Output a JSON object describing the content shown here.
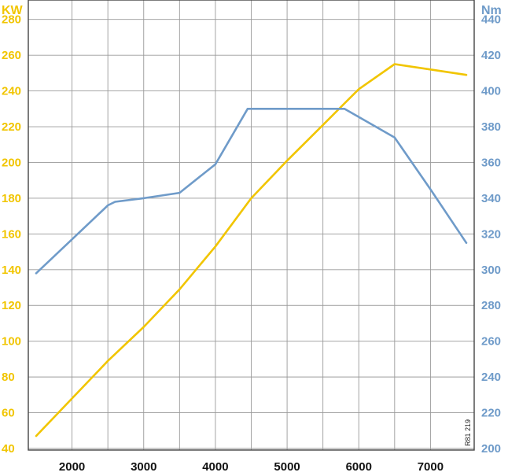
{
  "chart_data": {
    "type": "line",
    "x_ticks": [
      2000,
      3000,
      4000,
      5000,
      6000,
      7000
    ],
    "xlim": [
      1500,
      7500
    ],
    "y_left": {
      "unit": "KW",
      "ticks": [
        40,
        60,
        80,
        100,
        120,
        140,
        160,
        180,
        200,
        220,
        240,
        260,
        280
      ],
      "ylim": [
        40,
        290
      ],
      "color": "#f1c500"
    },
    "y_right": {
      "unit": "Nm",
      "ticks": [
        200,
        220,
        240,
        260,
        280,
        300,
        320,
        340,
        360,
        380,
        400,
        420,
        440
      ],
      "ylim": [
        200,
        450
      ],
      "color": "#6f9bc9"
    },
    "grid": true,
    "series": [
      {
        "axis": "left",
        "color": "#f1c500",
        "x": [
          1500,
          2000,
          2500,
          3000,
          3500,
          4000,
          4500,
          5000,
          5500,
          5800,
          6000,
          6500,
          7000,
          7500
        ],
        "y": [
          47,
          68,
          89,
          108,
          129,
          153,
          180,
          201,
          221,
          233,
          241,
          255,
          252,
          249
        ]
      },
      {
        "axis": "right",
        "color": "#6f9bc9",
        "x": [
          1500,
          2000,
          2500,
          2600,
          3000,
          3500,
          4000,
          4450,
          5000,
          5500,
          5800,
          6500,
          7000,
          7500
        ],
        "y": [
          298,
          317,
          336,
          338,
          340,
          343,
          359,
          390,
          390,
          390,
          390,
          374,
          345,
          315
        ]
      }
    ],
    "annotation": "R81 219"
  }
}
